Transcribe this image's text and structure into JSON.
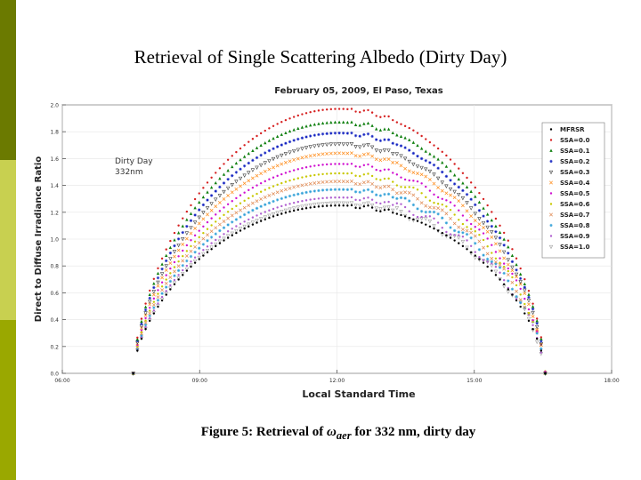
{
  "slide": {
    "title": "Retrieval of Single Scattering Albedo (Dirty Day)",
    "caption_prefix": "Figure 5: Retrieval of ",
    "caption_symbol": "ω",
    "caption_subscript": "aer",
    "caption_suffix": " for 332 nm, dirty day"
  },
  "colors": {
    "bar_dark": "#6b7a00",
    "bar_light": "#c8d050",
    "bar_mid": "#9aa800"
  },
  "chart_data": {
    "type": "scatter",
    "title": "February 05, 2009, El Paso, Texas",
    "xlabel": "Local Standard Time",
    "ylabel": "Direct to Diffuse Irradiance Ratio",
    "annotation": [
      "Dirty Day",
      "332nm"
    ],
    "xlim": [
      6,
      18
    ],
    "ylim": [
      0,
      2
    ],
    "xticks": [
      6,
      9,
      12,
      15,
      18
    ],
    "xtick_labels": [
      "06:00",
      "09:00",
      "12:00",
      "15:00",
      "18:00"
    ],
    "yticks": [
      0,
      0.2,
      0.4,
      0.6,
      0.8,
      1.0,
      1.2,
      1.4,
      1.6,
      1.8,
      2.0
    ],
    "ytick_labels": [
      "0.0",
      "0.2",
      "0.4",
      "0.6",
      "0.8",
      "1.0",
      "1.2",
      "1.4",
      "1.6",
      "1.8",
      "2.0"
    ],
    "x_start": 7.55,
    "x_end": 16.55,
    "x_step": 0.09,
    "series": [
      {
        "name": "MFRSR",
        "peak": 1.25,
        "color": "#000000",
        "marker": "dot"
      },
      {
        "name": "SSA=0.0",
        "peak": 1.97,
        "color": "#d62020",
        "marker": "dot"
      },
      {
        "name": "SSA=0.1",
        "peak": 1.87,
        "color": "#108010",
        "marker": "tri"
      },
      {
        "name": "SSA=0.2",
        "peak": 1.79,
        "color": "#1020c0",
        "marker": "star"
      },
      {
        "name": "SSA=0.3",
        "peak": 1.71,
        "color": "#404040",
        "marker": "tri-down"
      },
      {
        "name": "SSA=0.4",
        "peak": 1.64,
        "color": "#ff8c1a",
        "marker": "x"
      },
      {
        "name": "SSA=0.5",
        "peak": 1.56,
        "color": "#d010d0",
        "marker": "dot"
      },
      {
        "name": "SSA=0.6",
        "peak": 1.49,
        "color": "#c8c800",
        "marker": "dot"
      },
      {
        "name": "SSA=0.7",
        "peak": 1.43,
        "color": "#e08850",
        "marker": "x"
      },
      {
        "name": "SSA=0.8",
        "peak": 1.37,
        "color": "#30a0d8",
        "marker": "star"
      },
      {
        "name": "SSA=0.9",
        "peak": 1.31,
        "color": "#b060d0",
        "marker": "dot"
      },
      {
        "name": "SSA=1.0",
        "peak": 1.27,
        "color": "#a0a0a0",
        "marker": "tri-down"
      }
    ],
    "legend_position": "top-right"
  }
}
